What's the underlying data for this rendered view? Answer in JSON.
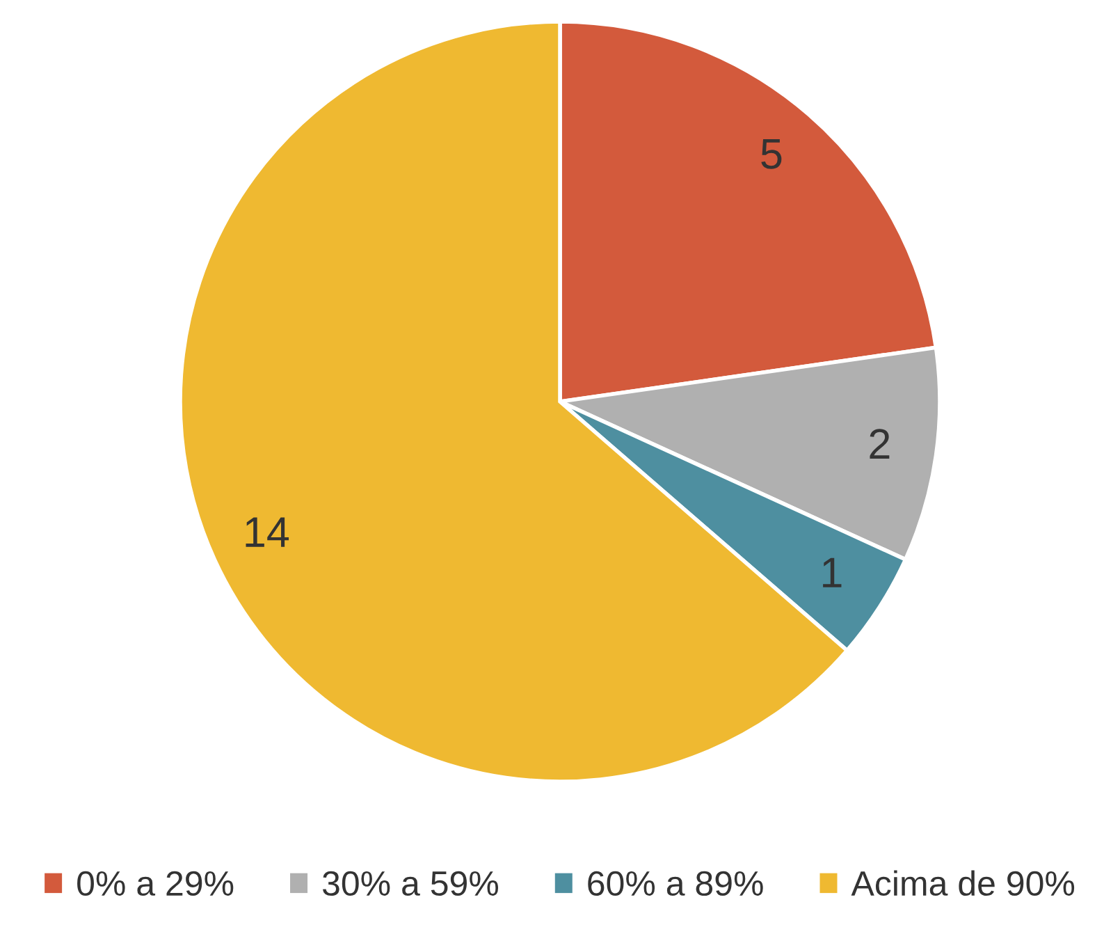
{
  "chart_data": {
    "type": "pie",
    "categories": [
      "0% a 29%",
      "30% a 59%",
      "60% a 89%",
      "Acima de 90%"
    ],
    "values": [
      5,
      2,
      1,
      14
    ],
    "colors": [
      "#d35a3c",
      "#b0b0b0",
      "#4e8fa0",
      "#efb931"
    ],
    "data_labels": true,
    "legend": "bottom"
  }
}
